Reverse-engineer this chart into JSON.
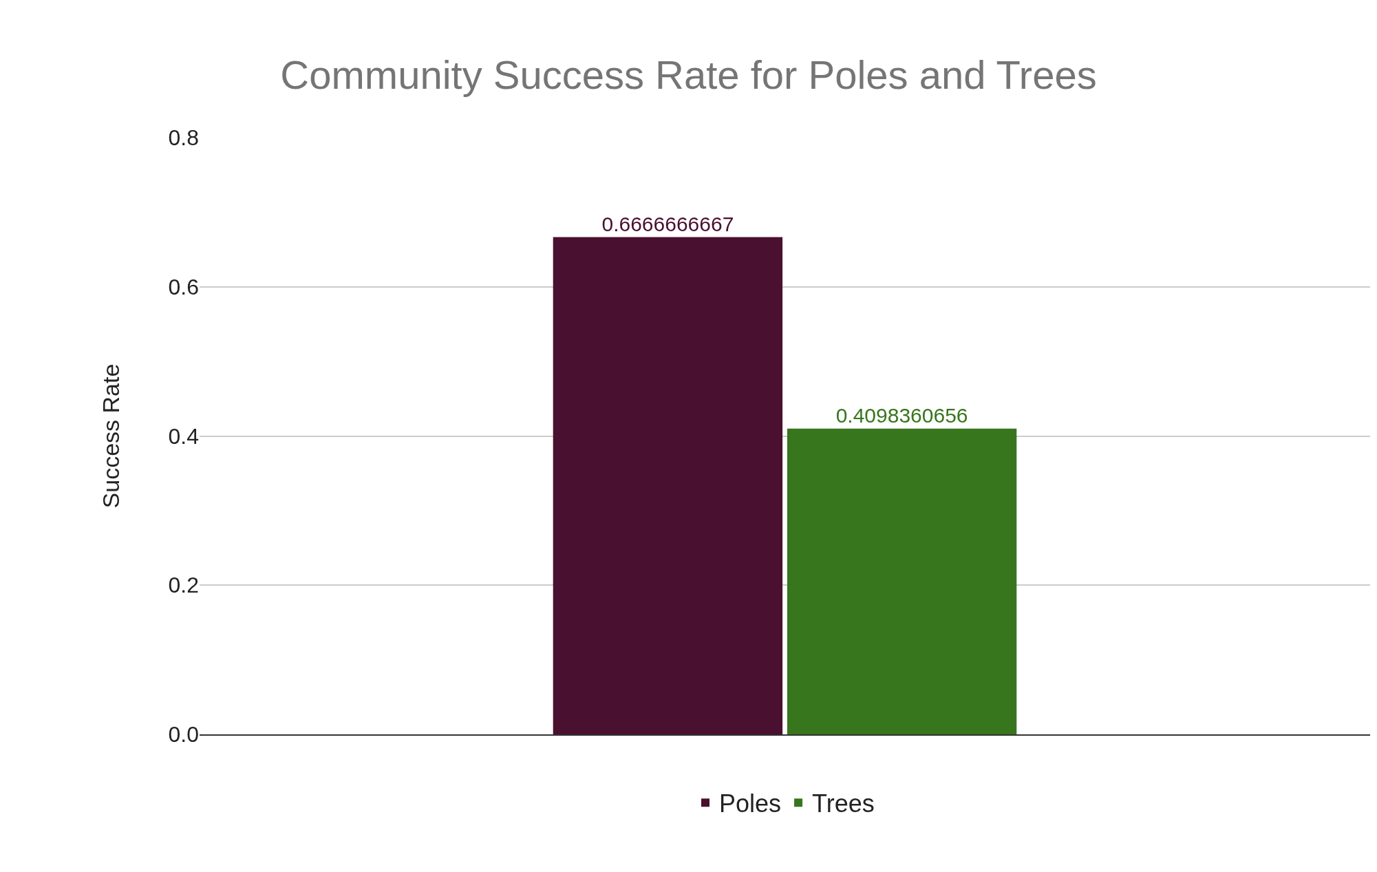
{
  "chart_data": {
    "type": "bar",
    "title": "Community Success Rate for Poles and Trees",
    "ylabel": "Success Rate",
    "categories": [
      null
    ],
    "series": [
      {
        "name": "Poles",
        "color": "#4a1030",
        "values": [
          0.6666666667
        ]
      },
      {
        "name": "Trees",
        "color": "#38761d",
        "values": [
          0.4098360656
        ]
      }
    ],
    "ylim": [
      0,
      0.8
    ],
    "yticks": [
      {
        "value": 0,
        "label": "0.0"
      },
      0.2,
      0.4,
      0.6,
      0.8
    ],
    "data_labels": true,
    "grid": "y",
    "legend": "bottom"
  }
}
